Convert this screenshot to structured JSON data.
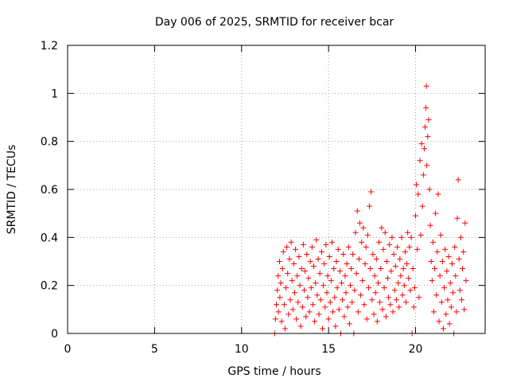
{
  "chart_data": {
    "type": "scatter",
    "title": "Day 006 of 2025, SRMTID for receiver bcar",
    "xlabel": "GPS time / hours",
    "ylabel": "SRMTID / TECUs",
    "xlim": [
      0,
      24
    ],
    "ylim": [
      0,
      1.2
    ],
    "xticks": [
      0,
      5,
      10,
      15,
      20
    ],
    "yticks": [
      0,
      0.2,
      0.4,
      0.6,
      0.8,
      1,
      1.2
    ],
    "xtick_labels": [
      "0",
      "5",
      "10",
      "15",
      "20"
    ],
    "ytick_labels": [
      "0",
      "0.2",
      "0.4",
      "0.6",
      "0.8",
      "1",
      "1.2"
    ],
    "grid": true,
    "marker": "+",
    "color": "#ff0000",
    "series": [
      {
        "name": "SRMTID",
        "points": [
          [
            11.9,
            0.0
          ],
          [
            11.95,
            0.06
          ],
          [
            12.0,
            0.12
          ],
          [
            12.05,
            0.18
          ],
          [
            12.1,
            0.24
          ],
          [
            12.12,
            0.09
          ],
          [
            12.18,
            0.3
          ],
          [
            12.2,
            0.15
          ],
          [
            12.25,
            0.21
          ],
          [
            12.3,
            0.05
          ],
          [
            12.35,
            0.27
          ],
          [
            12.4,
            0.34
          ],
          [
            12.45,
            0.12
          ],
          [
            12.5,
            0.02
          ],
          [
            12.55,
            0.19
          ],
          [
            12.6,
            0.36
          ],
          [
            12.65,
            0.25
          ],
          [
            12.7,
            0.08
          ],
          [
            12.75,
            0.31
          ],
          [
            12.8,
            0.14
          ],
          [
            12.85,
            0.38
          ],
          [
            12.9,
            0.22
          ],
          [
            12.95,
            0.1
          ],
          [
            13.0,
            0.29
          ],
          [
            13.05,
            0.17
          ],
          [
            13.1,
            0.35
          ],
          [
            13.15,
            0.06
          ],
          [
            13.2,
            0.24
          ],
          [
            13.25,
            0.13
          ],
          [
            13.3,
            0.32
          ],
          [
            13.35,
            0.2
          ],
          [
            13.4,
            0.03
          ],
          [
            13.45,
            0.27
          ],
          [
            13.5,
            0.11
          ],
          [
            13.55,
            0.37
          ],
          [
            13.6,
            0.18
          ],
          [
            13.65,
            0.26
          ],
          [
            13.7,
            0.07
          ],
          [
            13.75,
            0.33
          ],
          [
            13.8,
            0.15
          ],
          [
            13.85,
            0.23
          ],
          [
            13.9,
            0.09
          ],
          [
            13.95,
            0.3
          ],
          [
            14.0,
            0.19
          ],
          [
            14.05,
            0.36
          ],
          [
            14.1,
            0.12
          ],
          [
            14.15,
            0.28
          ],
          [
            14.2,
            0.05
          ],
          [
            14.25,
            0.21
          ],
          [
            14.3,
            0.39
          ],
          [
            14.35,
            0.16
          ],
          [
            14.4,
            0.31
          ],
          [
            14.45,
            0.08
          ],
          [
            14.5,
            0.25
          ],
          [
            14.55,
            0.14
          ],
          [
            14.6,
            0.34
          ],
          [
            14.65,
            0.02
          ],
          [
            14.7,
            0.2
          ],
          [
            14.75,
            0.29
          ],
          [
            14.8,
            0.11
          ],
          [
            14.85,
            0.37
          ],
          [
            14.9,
            0.17
          ],
          [
            14.95,
            0.24
          ],
          [
            15.0,
            0.06
          ],
          [
            15.05,
            0.32
          ],
          [
            15.1,
            0.13
          ],
          [
            15.15,
            0.22
          ],
          [
            15.2,
            0.38
          ],
          [
            15.25,
            0.09
          ],
          [
            15.3,
            0.27
          ],
          [
            15.35,
            0.15
          ],
          [
            15.4,
            0.03
          ],
          [
            15.45,
            0.3
          ],
          [
            15.5,
            0.19
          ],
          [
            15.55,
            0.35
          ],
          [
            15.6,
            0.1
          ],
          [
            15.65,
            0.26
          ],
          [
            15.7,
            0.0
          ],
          [
            15.75,
            0.21
          ],
          [
            15.8,
            0.14
          ],
          [
            15.85,
            0.33
          ],
          [
            15.9,
            0.07
          ],
          [
            15.95,
            0.24
          ],
          [
            16.0,
            0.17
          ],
          [
            16.05,
            0.29
          ],
          [
            16.1,
            0.11
          ],
          [
            16.15,
            0.36
          ],
          [
            16.2,
            0.04
          ],
          [
            16.25,
            0.2
          ],
          [
            16.3,
            0.27
          ],
          [
            16.35,
            0.13
          ],
          [
            16.4,
            0.33
          ],
          [
            16.45,
            0.0
          ],
          [
            16.5,
            0.18
          ],
          [
            16.55,
            0.42
          ],
          [
            16.6,
            0.25
          ],
          [
            16.65,
            0.51
          ],
          [
            16.7,
            0.09
          ],
          [
            16.75,
            0.31
          ],
          [
            16.8,
            0.46
          ],
          [
            16.85,
            0.16
          ],
          [
            16.9,
            0.38
          ],
          [
            16.95,
            0.22
          ],
          [
            17.0,
            0.44
          ],
          [
            17.05,
            0.12
          ],
          [
            17.1,
            0.29
          ],
          [
            17.15,
            0.36
          ],
          [
            17.2,
            0.06
          ],
          [
            17.25,
            0.41
          ],
          [
            17.3,
            0.19
          ],
          [
            17.35,
            0.53
          ],
          [
            17.4,
            0.27
          ],
          [
            17.45,
            0.59
          ],
          [
            17.5,
            0.14
          ],
          [
            17.55,
            0.33
          ],
          [
            17.6,
            0.08
          ],
          [
            17.65,
            0.24
          ],
          [
            17.7,
            0.17
          ],
          [
            17.75,
            0.31
          ],
          [
            17.8,
            0.05
          ],
          [
            17.85,
            0.21
          ],
          [
            17.9,
            0.38
          ],
          [
            17.95,
            0.13
          ],
          [
            18.0,
            0.27
          ],
          [
            18.05,
            0.44
          ],
          [
            18.1,
            0.1
          ],
          [
            18.15,
            0.35
          ],
          [
            18.2,
            0.19
          ],
          [
            18.25,
            0.42
          ],
          [
            18.3,
            0.07
          ],
          [
            18.35,
            0.3
          ],
          [
            18.4,
            0.23
          ],
          [
            18.45,
            0.15
          ],
          [
            18.5,
            0.37
          ],
          [
            18.55,
            0.12
          ],
          [
            18.6,
            0.26
          ],
          [
            18.65,
            0.4
          ],
          [
            18.7,
            0.09
          ],
          [
            18.75,
            0.33
          ],
          [
            18.8,
            0.18
          ],
          [
            18.85,
            0.28
          ],
          [
            18.9,
            0.14
          ],
          [
            18.95,
            0.36
          ],
          [
            19.0,
            0.21
          ],
          [
            19.05,
            0.11
          ],
          [
            19.1,
            0.31
          ],
          [
            19.15,
            0.24
          ],
          [
            19.2,
            0.4
          ],
          [
            19.25,
            0.16
          ],
          [
            19.3,
            0.27
          ],
          [
            19.35,
            0.2
          ],
          [
            19.4,
            0.34
          ],
          [
            19.45,
            0.13
          ],
          [
            19.5,
            0.29
          ],
          [
            19.55,
            0.42
          ],
          [
            19.6,
            0.23
          ],
          [
            19.65,
            0.36
          ],
          [
            19.7,
            0.18
          ],
          [
            19.75,
            0.4
          ],
          [
            19.8,
            0.0
          ],
          [
            19.85,
            0.27
          ],
          [
            19.9,
            0.11
          ],
          [
            19.95,
            0.19
          ],
          [
            20.0,
            0.49
          ],
          [
            20.05,
            0.62
          ],
          [
            20.1,
            0.35
          ],
          [
            20.15,
            0.58
          ],
          [
            20.2,
            0.15
          ],
          [
            20.25,
            0.72
          ],
          [
            20.3,
            0.41
          ],
          [
            20.35,
            0.79
          ],
          [
            20.4,
            0.53
          ],
          [
            20.45,
            0.66
          ],
          [
            20.5,
            0.77
          ],
          [
            20.55,
            0.86
          ],
          [
            20.6,
            0.94
          ],
          [
            20.62,
            1.03
          ],
          [
            20.65,
            0.7
          ],
          [
            20.7,
            0.82
          ],
          [
            20.75,
            0.89
          ],
          [
            20.8,
            0.6
          ],
          [
            20.85,
            0.45
          ],
          [
            20.9,
            0.3
          ],
          [
            20.95,
            0.22
          ],
          [
            21.0,
            0.38
          ],
          [
            21.05,
            0.09
          ],
          [
            21.1,
            0.27
          ],
          [
            21.15,
            0.5
          ],
          [
            21.2,
            0.16
          ],
          [
            21.25,
            0.34
          ],
          [
            21.3,
            0.58
          ],
          [
            21.35,
            0.05
          ],
          [
            21.4,
            0.24
          ],
          [
            21.45,
            0.41
          ],
          [
            21.5,
            0.13
          ],
          [
            21.55,
            0.3
          ],
          [
            21.6,
            0.02
          ],
          [
            21.65,
            0.19
          ],
          [
            21.7,
            0.35
          ],
          [
            21.75,
            0.08
          ],
          [
            21.8,
            0.26
          ],
          [
            21.85,
            0.14
          ],
          [
            21.9,
            0.32
          ],
          [
            21.95,
            0.04
          ],
          [
            22.0,
            0.21
          ],
          [
            22.05,
            0.11
          ],
          [
            22.1,
            0.29
          ],
          [
            22.15,
            0.17
          ],
          [
            22.2,
            0.0
          ],
          [
            22.25,
            0.36
          ],
          [
            22.3,
            0.24
          ],
          [
            22.35,
            0.09
          ],
          [
            22.4,
            0.48
          ],
          [
            22.45,
            0.64
          ],
          [
            22.5,
            0.31
          ],
          [
            22.55,
            0.18
          ],
          [
            22.6,
            0.4
          ],
          [
            22.65,
            0.14
          ],
          [
            22.7,
            0.27
          ],
          [
            22.75,
            0.34
          ],
          [
            22.8,
            0.1
          ],
          [
            22.85,
            0.46
          ],
          [
            22.9,
            0.22
          ]
        ]
      }
    ]
  }
}
